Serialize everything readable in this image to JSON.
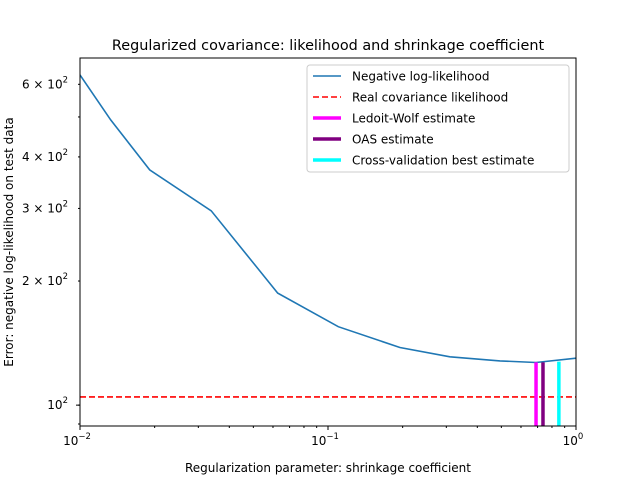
{
  "chart_data": {
    "type": "line",
    "title": "Regularized covariance: likelihood and shrinkage coefficient",
    "xlabel": "Regularization parameter: shrinkage coefficient",
    "ylabel": "Error: negative log-likelihood on test data",
    "x_scale": "log",
    "y_scale": "log",
    "xlim": [
      0.01,
      1
    ],
    "ylim": [
      89,
      695
    ],
    "grid": false,
    "legend_placement": "top-right",
    "x_ticks": [
      {
        "value": 0.01,
        "base": "10",
        "exp": "−2"
      },
      {
        "value": 0.1,
        "base": "10",
        "exp": "−1"
      },
      {
        "value": 1,
        "base": "10",
        "exp": "0"
      }
    ],
    "y_ticks": [
      {
        "value": 100,
        "label": "10",
        "exp": "2"
      },
      {
        "value": 200,
        "label": "2 × 10",
        "exp": "2"
      },
      {
        "value": 300,
        "label": "3 × 10",
        "exp": "2"
      },
      {
        "value": 400,
        "label": "4 × 10",
        "exp": "2"
      },
      {
        "value": 500,
        "label": "",
        "exp": ""
      },
      {
        "value": 600,
        "label": "6 × 10",
        "exp": "2"
      }
    ],
    "series": [
      {
        "name": "Negative log-likelihood",
        "color": "#1f77b4",
        "style": "solid",
        "x": [
          0.01,
          0.0133,
          0.0191,
          0.0338,
          0.0627,
          0.11,
          0.195,
          0.31,
          0.494,
          0.69,
          1.0
        ],
        "y": [
          632,
          492,
          372,
          296,
          187,
          155,
          138,
          131,
          128,
          126.9,
          130
        ]
      },
      {
        "name": "Real covariance likelihood",
        "color": "#ff0000",
        "style": "dashed",
        "hline": 104.7
      },
      {
        "name": "Ledoit-Wolf estimate",
        "color": "#ff00ff",
        "style": "vline",
        "x": 0.69,
        "y_top": 127
      },
      {
        "name": "OAS estimate",
        "color": "#800080",
        "style": "vline",
        "x": 0.736,
        "y_top": 127
      },
      {
        "name": "Cross-validation best estimate",
        "color": "#00ffff",
        "style": "vline",
        "x": 0.853,
        "y_top": 127.5
      }
    ]
  }
}
